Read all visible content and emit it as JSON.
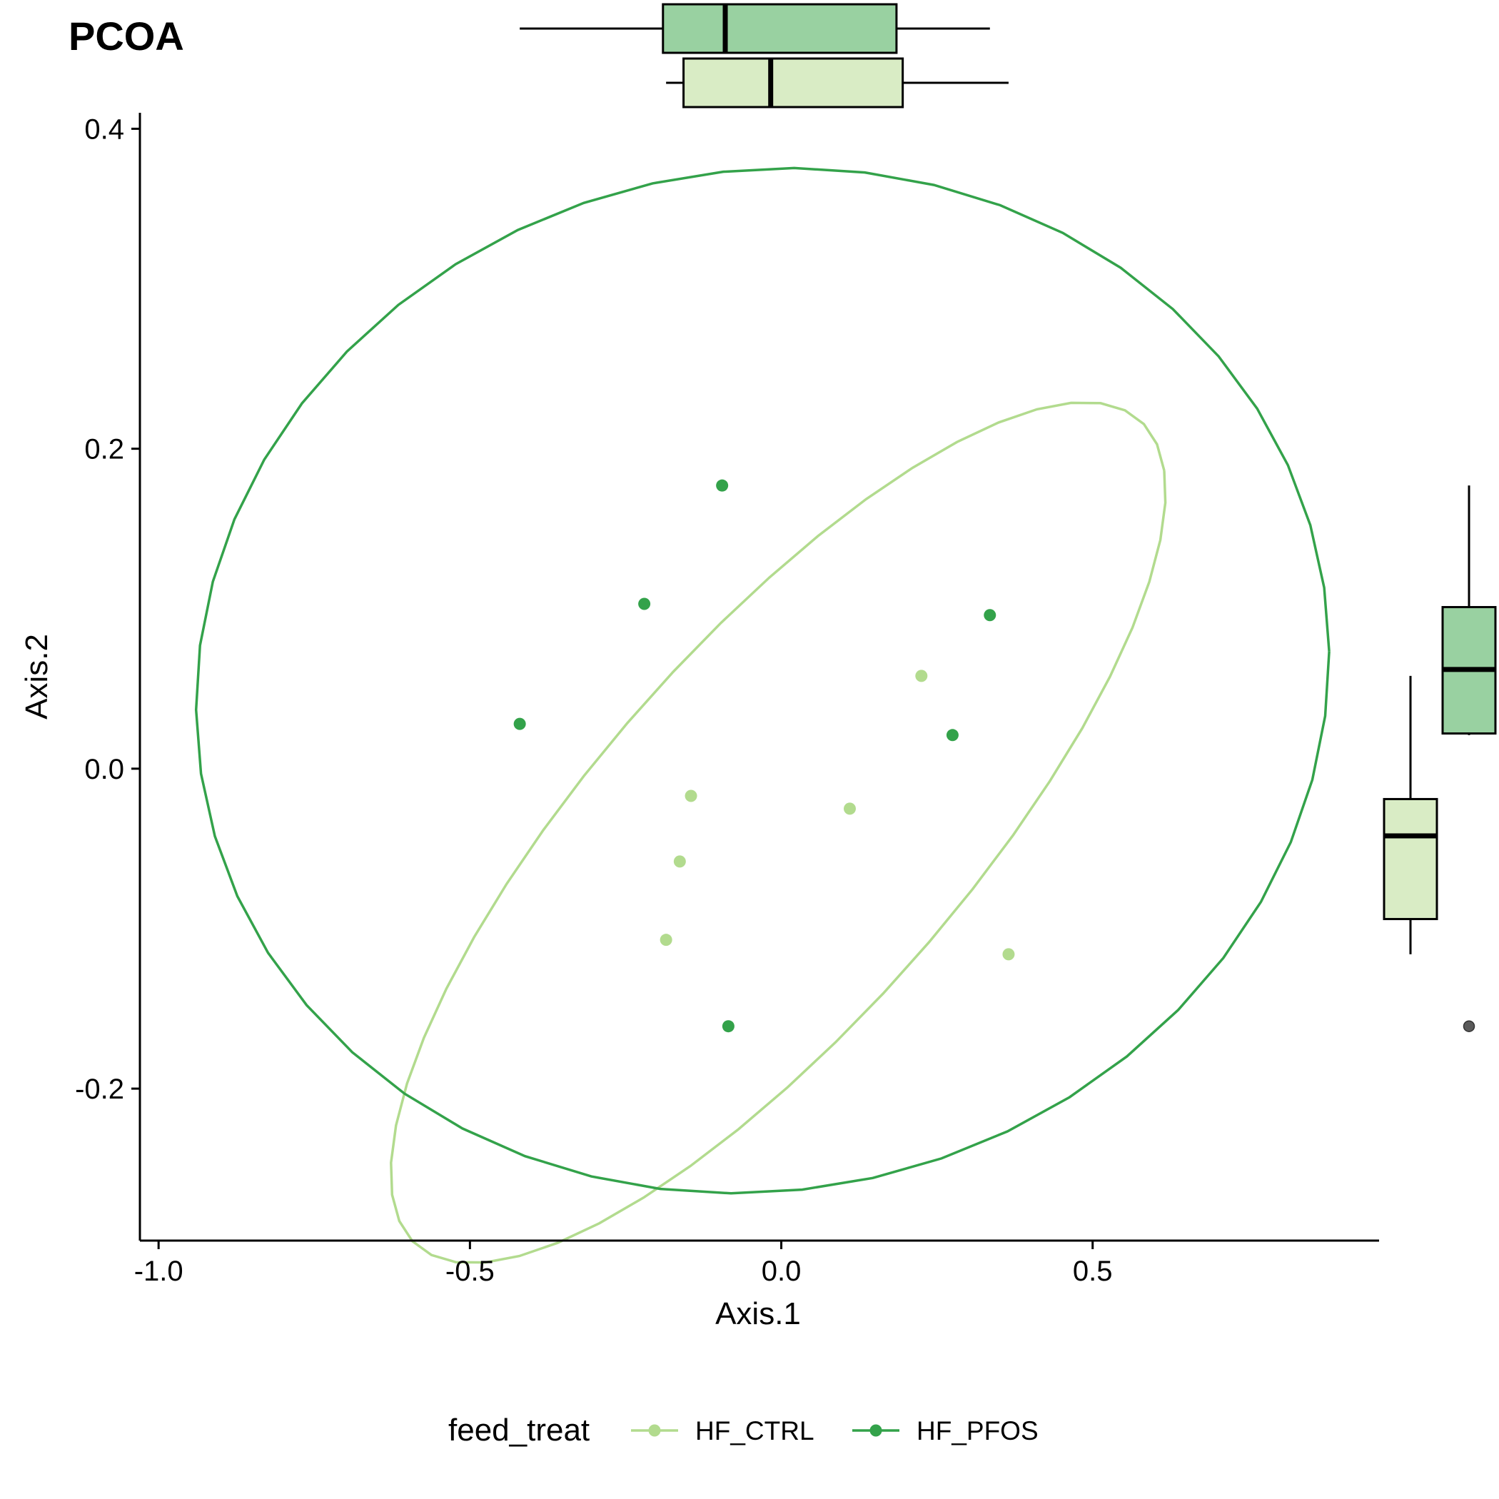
{
  "chart_data": {
    "type": "scatter",
    "title": "PCOA",
    "xlabel": "Axis.1",
    "ylabel": "Axis.2",
    "xlim": [
      -1.03,
      0.96
    ],
    "ylim": [
      -0.295,
      0.41
    ],
    "xticks": [
      {
        "value": -1.0,
        "label": "-1.0"
      },
      {
        "value": -0.5,
        "label": "-0.5"
      },
      {
        "value": 0.0,
        "label": "0.0"
      },
      {
        "value": 0.5,
        "label": "0.5"
      }
    ],
    "yticks": [
      {
        "value": 0.4,
        "label": "0.4"
      },
      {
        "value": 0.2,
        "label": "0.2"
      },
      {
        "value": 0.0,
        "label": "0.0"
      },
      {
        "value": -0.2,
        "label": "-0.2"
      }
    ],
    "grid": false,
    "legend": {
      "title": "feed_treat",
      "position": "bottom"
    },
    "series": [
      {
        "name": "HF_CTRL",
        "color": "#b2db8e",
        "box_fill": "#d9ecc5",
        "points": [
          {
            "x": 0.225,
            "y": 0.058
          },
          {
            "x": -0.145,
            "y": -0.017
          },
          {
            "x": 0.11,
            "y": -0.025
          },
          {
            "x": -0.163,
            "y": -0.058
          },
          {
            "x": -0.185,
            "y": -0.107
          },
          {
            "x": 0.365,
            "y": -0.116
          }
        ],
        "ellipse": {
          "cx": -0.005,
          "cy": -0.04,
          "rx": 0.66,
          "ry": 0.155,
          "angle": 0.35
        },
        "box_x": {
          "min": -0.185,
          "q1": -0.157,
          "median": -0.017,
          "q3": 0.195,
          "max": 0.365
        },
        "box_y": {
          "min": -0.116,
          "q1": -0.094,
          "median": -0.042,
          "q3": -0.019,
          "max": 0.058,
          "outliers": []
        }
      },
      {
        "name": "HF_PFOS",
        "color": "#33a24a",
        "box_fill": "#99d1a1",
        "points": [
          {
            "x": -0.095,
            "y": 0.177
          },
          {
            "x": -0.22,
            "y": 0.103
          },
          {
            "x": 0.335,
            "y": 0.096
          },
          {
            "x": -0.42,
            "y": 0.028
          },
          {
            "x": 0.275,
            "y": 0.021
          },
          {
            "x": -0.085,
            "y": -0.161
          }
        ],
        "ellipse": {
          "cx": -0.03,
          "cy": 0.055,
          "rx": 0.91,
          "ry": 0.32,
          "angle": 0.02
        },
        "box_x": {
          "min": -0.42,
          "q1": -0.19,
          "median": -0.09,
          "q3": 0.185,
          "max": 0.335
        },
        "box_y": {
          "min": 0.021,
          "q1": 0.022,
          "median": 0.062,
          "q3": 0.101,
          "max": 0.177,
          "outliers": [
            -0.161
          ]
        }
      }
    ]
  }
}
